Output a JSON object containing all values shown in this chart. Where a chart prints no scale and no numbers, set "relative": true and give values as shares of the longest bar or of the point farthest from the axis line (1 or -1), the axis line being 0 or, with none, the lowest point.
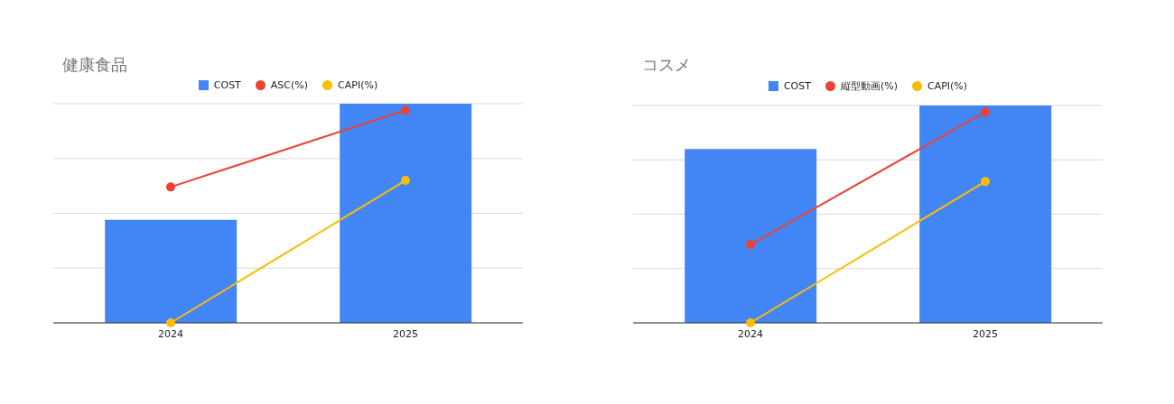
{
  "chart_data": [
    {
      "type": "bar",
      "title": "健康食品",
      "categories": [
        "2024",
        "2025"
      ],
      "relative": true,
      "grid": "y",
      "legend": "top",
      "marker": "circle",
      "series": [
        {
          "name": "COST",
          "color": "#4285f4",
          "values": [
            0.47,
            1
          ]
        },
        {
          "name": "ASC(%)",
          "type": "line",
          "color": "#ea4335",
          "values": [
            0.62,
            0.97
          ]
        },
        {
          "name": "CAPI(%)",
          "type": "line",
          "color": "#fbbc04",
          "values": [
            0,
            0.65
          ]
        }
      ]
    },
    {
      "type": "bar",
      "title": "コスメ",
      "categories": [
        "2024",
        "2025"
      ],
      "relative": true,
      "grid": "y",
      "legend": "top",
      "marker": "circle",
      "series": [
        {
          "name": "COST",
          "color": "#4285f4",
          "values": [
            0.8,
            1
          ]
        },
        {
          "name": "縦型動画(%)",
          "type": "line",
          "color": "#ea4335",
          "values": [
            0.36,
            0.97
          ]
        },
        {
          "name": "CAPI(%)",
          "type": "line",
          "color": "#fbbc04",
          "values": [
            0,
            0.65
          ]
        }
      ]
    }
  ]
}
